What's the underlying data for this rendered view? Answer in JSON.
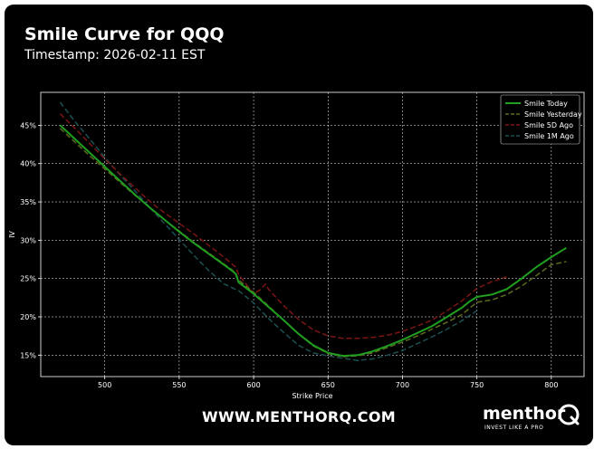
{
  "header": {
    "title": "Smile Curve for QQQ",
    "subtitle": "Timestamp: 2026-02-11 EST"
  },
  "footer": {
    "url": "WWW.MENTHORQ.COM",
    "brand_name": "menthor",
    "brand_tagline": "INVEST LIKE A PRO",
    "brand_logo_letter": "Q"
  },
  "colors": {
    "background": "#000000",
    "today": "#1f9e1f",
    "yesterday": "#5c6b1c",
    "ago5d": "#7a1515",
    "ago1m": "#1d4f52",
    "grid": "#ffffff"
  },
  "chart_data": {
    "type": "line",
    "title": "Smile Curve for QQQ",
    "xlabel": "Strike Price",
    "ylabel": "IV",
    "xlim": [
      457,
      822
    ],
    "ylim": [
      12.2,
      49.3
    ],
    "xticks": [
      500,
      550,
      600,
      650,
      700,
      750,
      800
    ],
    "yticks": [
      15,
      20,
      25,
      30,
      35,
      40,
      45
    ],
    "ytick_suffix": "%",
    "grid": true,
    "legend_position": "top-right",
    "series": [
      {
        "name": "Smile Today",
        "color": "#1f9e1f",
        "style": "solid",
        "x": [
          470,
          480,
          490,
          500,
          510,
          520,
          530,
          540,
          550,
          560,
          570,
          580,
          585,
          588,
          590,
          600,
          610,
          620,
          630,
          640,
          650,
          660,
          670,
          680,
          690,
          700,
          710,
          720,
          730,
          740,
          745,
          750,
          760,
          770,
          780,
          790,
          800,
          810
        ],
        "y": [
          45.0,
          43.2,
          41.4,
          39.6,
          37.8,
          36.0,
          34.3,
          32.7,
          31.1,
          29.6,
          28.2,
          26.8,
          26.1,
          25.6,
          24.5,
          23.0,
          21.3,
          19.6,
          17.8,
          16.3,
          15.3,
          14.9,
          15.0,
          15.5,
          16.2,
          17.0,
          17.9,
          18.8,
          20.0,
          21.2,
          22.0,
          22.6,
          22.9,
          23.6,
          25.0,
          26.5,
          27.8,
          29.0
        ]
      },
      {
        "name": "Smile Yesterday",
        "color": "#5c6b1c",
        "style": "dashed",
        "x": [
          470,
          480,
          490,
          500,
          510,
          520,
          530,
          540,
          550,
          560,
          570,
          580,
          585,
          588,
          590,
          600,
          610,
          620,
          630,
          640,
          650,
          660,
          670,
          680,
          690,
          700,
          710,
          720,
          730,
          740,
          750,
          760,
          770,
          780,
          790,
          800,
          810
        ],
        "y": [
          44.6,
          42.8,
          41.0,
          39.3,
          37.6,
          35.9,
          34.3,
          32.7,
          31.2,
          29.7,
          28.3,
          26.9,
          26.2,
          25.7,
          24.8,
          23.2,
          21.4,
          19.6,
          17.8,
          16.2,
          15.2,
          14.8,
          14.9,
          15.3,
          16.0,
          16.7,
          17.5,
          18.4,
          19.3,
          20.3,
          21.9,
          22.2,
          22.9,
          24.0,
          25.4,
          26.8,
          27.2
        ]
      },
      {
        "name": "Smile 5D Ago",
        "color": "#7a1515",
        "style": "dashed",
        "x": [
          470,
          480,
          490,
          500,
          510,
          520,
          530,
          540,
          550,
          560,
          570,
          580,
          588,
          590,
          600,
          605,
          608,
          610,
          620,
          630,
          640,
          650,
          660,
          670,
          680,
          690,
          700,
          710,
          720,
          730,
          740,
          750,
          760,
          770
        ],
        "y": [
          46.5,
          44.6,
          42.6,
          40.6,
          38.7,
          36.9,
          35.1,
          33.6,
          32.2,
          30.8,
          29.3,
          27.8,
          26.5,
          25.5,
          23.0,
          23.6,
          24.3,
          23.6,
          21.5,
          19.7,
          18.3,
          17.5,
          17.2,
          17.2,
          17.3,
          17.6,
          18.1,
          18.8,
          19.6,
          20.8,
          22.1,
          23.7,
          24.6,
          25.2
        ]
      },
      {
        "name": "Smile 1M Ago",
        "color": "#1d4f52",
        "style": "dashed",
        "x": [
          470,
          480,
          490,
          500,
          510,
          520,
          530,
          540,
          550,
          560,
          570,
          580,
          590,
          600,
          610,
          620,
          630,
          640,
          650,
          660,
          670,
          680,
          690,
          700,
          710,
          720,
          730,
          740,
          750
        ],
        "y": [
          48.0,
          45.5,
          43.2,
          40.8,
          38.6,
          36.5,
          34.3,
          32.2,
          30.1,
          28.0,
          26.0,
          24.3,
          23.4,
          21.8,
          19.8,
          18.0,
          16.3,
          15.3,
          14.9,
          14.6,
          14.3,
          14.5,
          15.0,
          15.6,
          16.5,
          17.4,
          18.4,
          19.5,
          20.8
        ]
      }
    ]
  }
}
